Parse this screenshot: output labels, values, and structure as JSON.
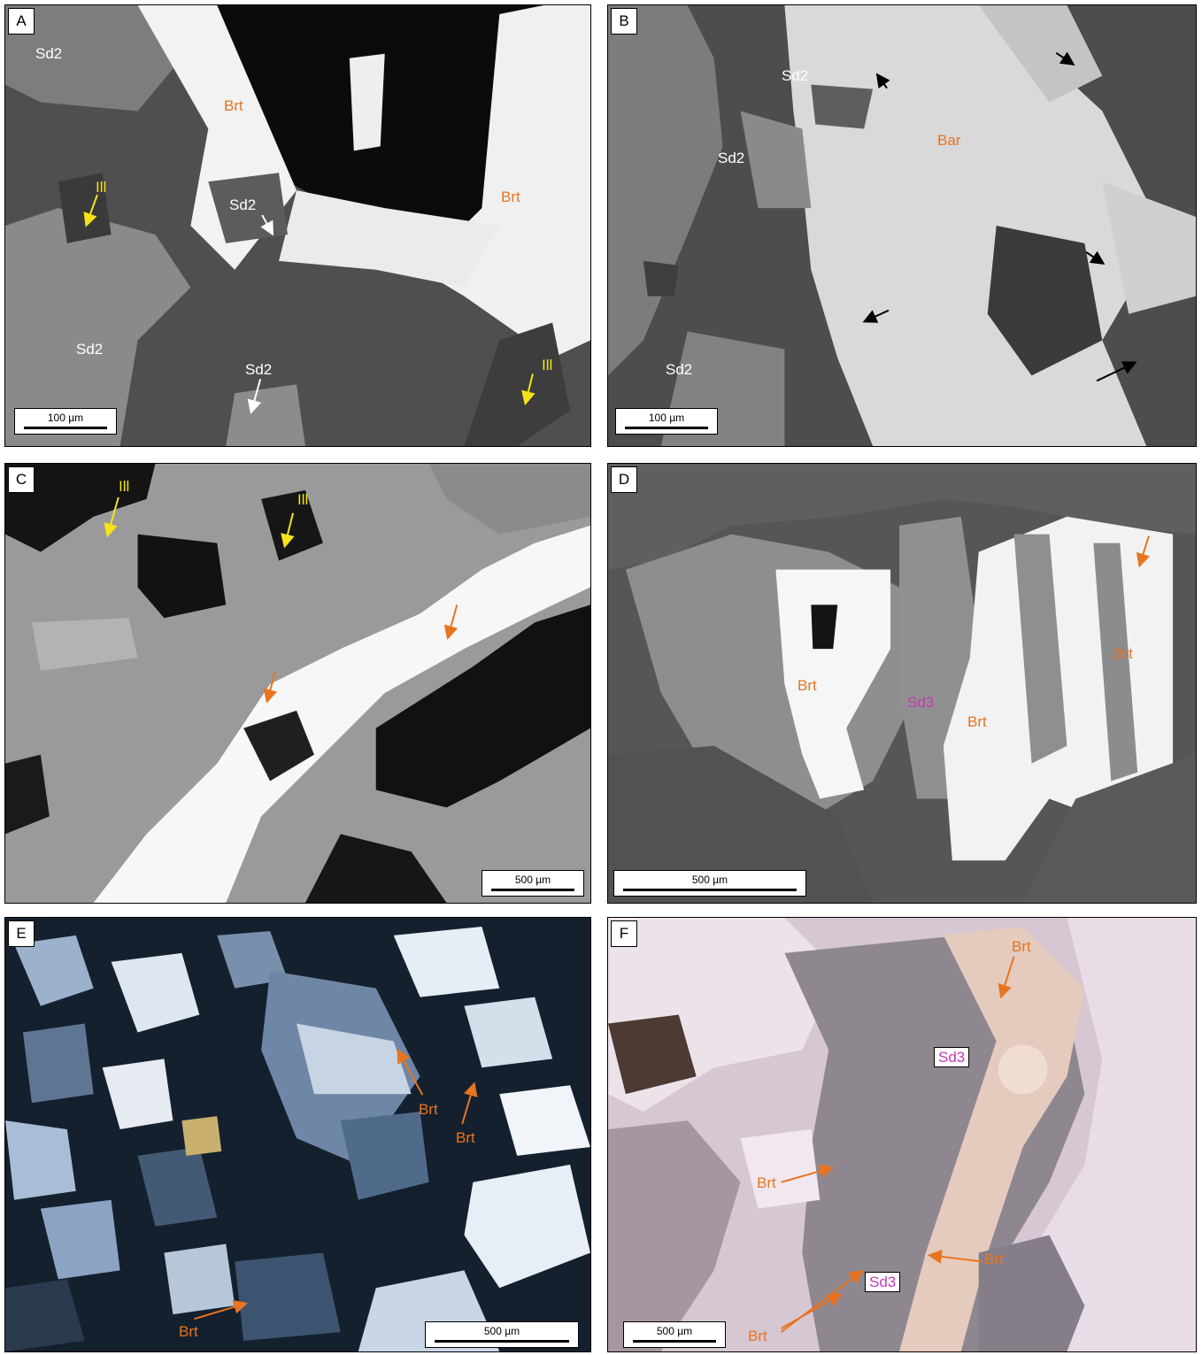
{
  "colors": {
    "sem_dark": "#505050",
    "sem_mid": "#8f8f8f",
    "sem_bright": "#f4f4f4",
    "pore_black": "#0c0c0c",
    "label_orange": "#e9741f",
    "label_yellow": "#f6e21a",
    "label_magenta": "#c538b8",
    "xpl_dark": "#14202e",
    "ppl_pink": "#d9c7d3"
  },
  "panels": {
    "A": {
      "letter": "A",
      "scale": "100 µm",
      "labels": {
        "sd2_top": "Sd2",
        "brt1": "Brt",
        "brt2": "Brt",
        "ill1": "Ill",
        "sd2_mid": "Sd2",
        "sd2_left": "Sd2",
        "sd2_bottom": "Sd2",
        "ill2": "Ill"
      }
    },
    "B": {
      "letter": "B",
      "scale": "100 µm",
      "labels": {
        "sd2_top": "Sd2",
        "bar": "Bar",
        "sd2_mid": "Sd2",
        "sd2_bottom": "Sd2"
      }
    },
    "C": {
      "letter": "C",
      "scale": "500 µm",
      "labels": {
        "ill1": "Ill",
        "ill2": "Ill"
      }
    },
    "D": {
      "letter": "D",
      "scale": "500 µm",
      "labels": {
        "brt1": "Brt",
        "sd3": "Sd3",
        "brt2": "Brt",
        "brt3": "Brt"
      }
    },
    "E": {
      "letter": "E",
      "scale": "500 µm",
      "labels": {
        "brt1": "Brt",
        "brt2": "Brt",
        "brt3": "Brt"
      }
    },
    "F": {
      "letter": "F",
      "scale": "500 µm",
      "labels": {
        "brt_top": "Brt",
        "sd3_top": "Sd3",
        "brt_left": "Brt",
        "brt_right": "Brt",
        "sd3_bottom": "Sd3",
        "brt_bottom": "Brt"
      }
    }
  }
}
